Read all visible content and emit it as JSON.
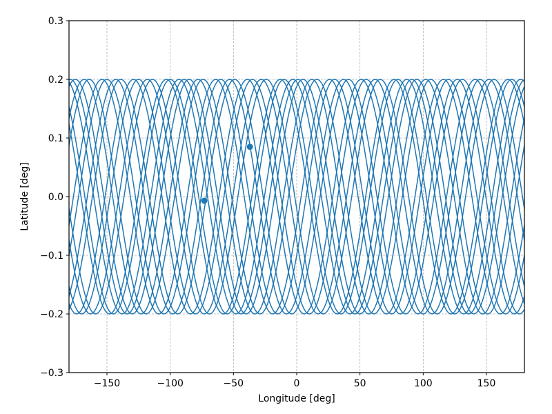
{
  "chart_data": {
    "type": "line",
    "xlabel": "Longitude [deg]",
    "ylabel": "Latitude [deg]",
    "xlim": [
      -180,
      180
    ],
    "ylim": [
      -0.3,
      0.3
    ],
    "xticks": [
      -150,
      -100,
      -50,
      0,
      50,
      100,
      150
    ],
    "xtick_labels": [
      "−150",
      "−100",
      "−50",
      "0",
      "50",
      "100",
      "150"
    ],
    "yticks": [
      -0.3,
      -0.2,
      -0.1,
      0.0,
      0.1,
      0.2,
      0.3
    ],
    "ytick_labels": [
      "−0.3",
      "−0.2",
      "−0.1",
      "0.0",
      "0.1",
      "0.2",
      "0.3"
    ],
    "grid": true,
    "grid_style": "dashed",
    "series_color": "#1f77b4",
    "series": [
      {
        "type": "ground-track",
        "latitude_amplitude": 0.2,
        "wavelength_deg": 90,
        "curve_peaks_lon": [
          -175,
          -150,
          -125,
          -100,
          -74,
          -49,
          -24,
          1,
          26,
          51,
          77,
          102,
          127,
          152,
          177
        ]
      }
    ],
    "markers": [
      {
        "lon": -73,
        "lat": -0.007
      },
      {
        "lon": -37,
        "lat": 0.085
      }
    ]
  }
}
